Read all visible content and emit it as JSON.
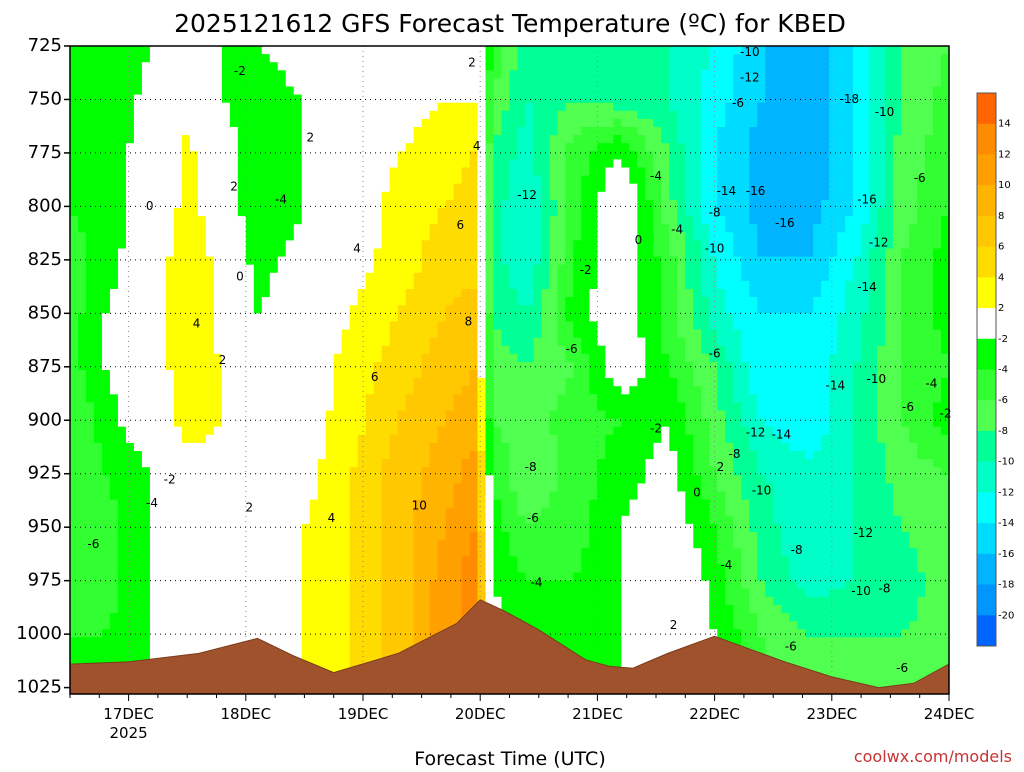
{
  "chart_data": {
    "type": "heatmap",
    "title": "2025121612 GFS Forecast Temperature (ºC) for KBED",
    "xlabel": "Forecast Time (UTC)",
    "ylabel": "",
    "credit": "coolwx.com/models",
    "x_ticks": [
      {
        "day": "17DEC",
        "year": "2025",
        "t": 1
      },
      {
        "day": "18DEC",
        "year": "",
        "t": 2
      },
      {
        "day": "19DEC",
        "year": "",
        "t": 3
      },
      {
        "day": "20DEC",
        "year": "",
        "t": 4
      },
      {
        "day": "21DEC",
        "year": "",
        "t": 5
      },
      {
        "day": "22DEC",
        "year": "",
        "t": 6
      },
      {
        "day": "23DEC",
        "year": "",
        "t": 7
      },
      {
        "day": "24DEC",
        "year": "",
        "t": 8
      }
    ],
    "xlim": [
      0.5,
      8.0
    ],
    "y_ticks": [
      725,
      750,
      775,
      800,
      825,
      850,
      875,
      900,
      925,
      950,
      975,
      1000,
      1025
    ],
    "ylim": [
      725,
      1028
    ],
    "y_inverted": true,
    "colorbar": {
      "labels": [
        "14",
        "12",
        "10",
        "8",
        "6",
        "4",
        "2",
        "-2",
        "-4",
        "-6",
        "-8",
        "-10",
        "-12",
        "-14",
        "-16",
        "-18",
        "-20"
      ],
      "colors": [
        "#ff6400",
        "#ff8c00",
        "#ffa000",
        "#ffb400",
        "#ffc800",
        "#ffdc00",
        "#ffff00",
        "#ffffff",
        "#00ff00",
        "#32ff32",
        "#50ff50",
        "#00ff96",
        "#00ffc8",
        "#00ffff",
        "#00dcff",
        "#00b4ff",
        "#0096ff",
        "#0064ff"
      ]
    },
    "field": {
      "time": [
        0.5,
        0.8,
        1.2,
        1.5,
        1.8,
        2.1,
        2.5,
        2.9,
        3.3,
        3.7,
        3.95,
        4.1,
        4.4,
        4.8,
        5.2,
        5.6,
        6.0,
        6.4,
        6.8,
        7.2,
        7.6,
        8.0
      ],
      "pressure": [
        725,
        750,
        775,
        800,
        825,
        850,
        875,
        900,
        925,
        950,
        975,
        1000,
        1025
      ],
      "temperature_c": [
        [
          -4,
          -4,
          -2,
          -1,
          -2,
          -2,
          -1,
          -1,
          0,
          1,
          2,
          -4,
          -10,
          -8,
          -9,
          -10,
          -12,
          -16,
          -18,
          -14,
          -8,
          -6
        ],
        [
          -4,
          -4,
          -1,
          0,
          -2,
          -3,
          -2,
          0,
          1,
          2,
          2,
          -6,
          -10,
          -8,
          -9,
          -10,
          -13,
          -16,
          -18,
          -14,
          -8,
          -5
        ],
        [
          -4,
          -3,
          -1,
          3,
          -1,
          -3,
          -2,
          0,
          2,
          3,
          4,
          -8,
          -11,
          -5,
          -2,
          -8,
          -14,
          -17,
          -18,
          -14,
          -7,
          -5
        ],
        [
          -4,
          -3,
          -1,
          3,
          0,
          -4,
          -2,
          0,
          3,
          4,
          5,
          -9,
          -12,
          -5,
          1,
          -7,
          -14,
          -17,
          -17,
          -14,
          -7,
          -4
        ],
        [
          -5,
          -3,
          0,
          4,
          1,
          -3,
          -1,
          1,
          3,
          5,
          5,
          -9,
          -12,
          -4,
          0,
          -5,
          -12,
          -16,
          -16,
          -12,
          -6,
          -3
        ],
        [
          -5,
          -2,
          0,
          4,
          1,
          -2,
          0,
          2,
          4,
          6,
          7,
          -8,
          -10,
          -3,
          0,
          -5,
          -11,
          -14,
          -14,
          -11,
          -6,
          -3
        ],
        [
          -5,
          -2,
          0,
          4,
          2,
          -1,
          0,
          3,
          5,
          7,
          8,
          -7,
          -8,
          -6,
          0,
          -4,
          -8,
          -14,
          -14,
          -10,
          -6,
          -4
        ],
        [
          -6,
          -3,
          0,
          3,
          2,
          0,
          1,
          3,
          6,
          8,
          9,
          -6,
          -7,
          -5,
          -4,
          -2,
          -7,
          -12,
          -14,
          -10,
          -6,
          -3
        ],
        [
          -6,
          -4,
          -2,
          1,
          1,
          0,
          1,
          4,
          7,
          9,
          11,
          -4,
          -8,
          -5,
          -3,
          -1,
          -6,
          -10,
          -11,
          -10,
          -7,
          -6
        ],
        [
          -6,
          -5,
          -2,
          1,
          2,
          0,
          2,
          4,
          7,
          10,
          12,
          -3,
          -6,
          -5,
          -2,
          0,
          -4,
          -9,
          -12,
          -10,
          -8,
          -6
        ],
        [
          -5,
          -5,
          -2,
          0,
          2,
          1,
          2,
          4,
          7,
          11,
          13,
          -2,
          -4,
          -4,
          -2,
          2,
          -3,
          -8,
          -11,
          -10,
          -9,
          -7
        ],
        [
          -4,
          -4,
          -2,
          0,
          2,
          1,
          2,
          4,
          7,
          11,
          13,
          -1,
          -3,
          -4,
          -2,
          2,
          -2,
          -6,
          -8,
          -8,
          -8,
          -7
        ],
        [
          -4,
          -4,
          -2,
          0,
          2,
          1,
          2,
          4,
          7,
          11,
          13,
          -1,
          -3,
          -4,
          -2,
          2,
          -2,
          -6,
          -8,
          -8,
          -8,
          -7
        ]
      ]
    },
    "terrain_pressure": [
      [
        0.5,
        1014
      ],
      [
        1.0,
        1013
      ],
      [
        1.6,
        1009
      ],
      [
        2.1,
        1002
      ],
      [
        2.4,
        1010
      ],
      [
        2.75,
        1018
      ],
      [
        3.3,
        1009
      ],
      [
        3.8,
        995
      ],
      [
        4.0,
        984
      ],
      [
        4.2,
        989
      ],
      [
        4.5,
        998
      ],
      [
        4.9,
        1012
      ],
      [
        5.1,
        1015
      ],
      [
        5.3,
        1016
      ],
      [
        5.6,
        1009
      ],
      [
        6.0,
        1001
      ],
      [
        6.2,
        1005
      ],
      [
        6.6,
        1013
      ],
      [
        7.0,
        1020
      ],
      [
        7.4,
        1025
      ],
      [
        7.7,
        1023
      ],
      [
        8.0,
        1014
      ]
    ],
    "contour_labels": [
      {
        "text": "-2",
        "t": 1.95,
        "p": 737
      },
      {
        "text": "2",
        "t": 3.93,
        "p": 733
      },
      {
        "text": "-10",
        "t": 6.3,
        "p": 728
      },
      {
        "text": "-12",
        "t": 6.3,
        "p": 740
      },
      {
        "text": "-18",
        "t": 7.15,
        "p": 750
      },
      {
        "text": "-10",
        "t": 7.45,
        "p": 756
      },
      {
        "text": "-6",
        "t": 6.2,
        "p": 752
      },
      {
        "text": "2",
        "t": 2.55,
        "p": 768
      },
      {
        "text": "4",
        "t": 3.97,
        "p": 772
      },
      {
        "text": "-4",
        "t": 5.5,
        "p": 786
      },
      {
        "text": "-6",
        "t": 7.75,
        "p": 787
      },
      {
        "text": "0",
        "t": 1.18,
        "p": 800
      },
      {
        "text": "2",
        "t": 1.9,
        "p": 791
      },
      {
        "text": "-4",
        "t": 2.3,
        "p": 797
      },
      {
        "text": "-12",
        "t": 4.4,
        "p": 795
      },
      {
        "text": "-14",
        "t": 6.1,
        "p": 793
      },
      {
        "text": "-16",
        "t": 6.35,
        "p": 793
      },
      {
        "text": "-8",
        "t": 6.0,
        "p": 803
      },
      {
        "text": "-16",
        "t": 6.6,
        "p": 808
      },
      {
        "text": "-16",
        "t": 7.3,
        "p": 797
      },
      {
        "text": "4",
        "t": 2.95,
        "p": 820
      },
      {
        "text": "6",
        "t": 3.83,
        "p": 809
      },
      {
        "text": "0",
        "t": 5.35,
        "p": 816
      },
      {
        "text": "-4",
        "t": 5.68,
        "p": 811
      },
      {
        "text": "-10",
        "t": 6.0,
        "p": 820
      },
      {
        "text": "-12",
        "t": 7.4,
        "p": 817
      },
      {
        "text": "0",
        "t": 1.95,
        "p": 833
      },
      {
        "text": "-2",
        "t": 4.9,
        "p": 830
      },
      {
        "text": "-14",
        "t": 7.3,
        "p": 838
      },
      {
        "text": "4",
        "t": 1.58,
        "p": 855
      },
      {
        "text": "8",
        "t": 3.9,
        "p": 854
      },
      {
        "text": "2",
        "t": 1.8,
        "p": 872
      },
      {
        "text": "6",
        "t": 3.1,
        "p": 880
      },
      {
        "text": "-6",
        "t": 4.78,
        "p": 867
      },
      {
        "text": "-6",
        "t": 6.0,
        "p": 869
      },
      {
        "text": "-14",
        "t": 7.03,
        "p": 884
      },
      {
        "text": "-10",
        "t": 7.38,
        "p": 881
      },
      {
        "text": "-4",
        "t": 7.85,
        "p": 883
      },
      {
        "text": "-6",
        "t": 7.65,
        "p": 894
      },
      {
        "text": "-2",
        "t": 7.97,
        "p": 897
      },
      {
        "text": "-2",
        "t": 5.5,
        "p": 904
      },
      {
        "text": "-12",
        "t": 6.35,
        "p": 906
      },
      {
        "text": "-14",
        "t": 6.57,
        "p": 907
      },
      {
        "text": "-8",
        "t": 6.17,
        "p": 916
      },
      {
        "text": "-2",
        "t": 1.35,
        "p": 928
      },
      {
        "text": "-8",
        "t": 4.43,
        "p": 922
      },
      {
        "text": "2",
        "t": 6.05,
        "p": 922
      },
      {
        "text": "-4",
        "t": 1.2,
        "p": 939
      },
      {
        "text": "0",
        "t": 5.85,
        "p": 934
      },
      {
        "text": "-10",
        "t": 6.4,
        "p": 933
      },
      {
        "text": "2",
        "t": 2.03,
        "p": 941
      },
      {
        "text": "10",
        "t": 3.48,
        "p": 940
      },
      {
        "text": "4",
        "t": 2.73,
        "p": 946
      },
      {
        "text": "-6",
        "t": 4.45,
        "p": 946
      },
      {
        "text": "-12",
        "t": 7.27,
        "p": 953
      },
      {
        "text": "-6",
        "t": 0.7,
        "p": 958
      },
      {
        "text": "-8",
        "t": 6.7,
        "p": 961
      },
      {
        "text": "-4",
        "t": 4.48,
        "p": 976
      },
      {
        "text": "-4",
        "t": 6.1,
        "p": 968
      },
      {
        "text": "-10",
        "t": 7.25,
        "p": 980
      },
      {
        "text": "-8",
        "t": 7.45,
        "p": 979
      },
      {
        "text": "2",
        "t": 5.65,
        "p": 996
      },
      {
        "text": "-6",
        "t": 6.65,
        "p": 1006
      },
      {
        "text": "-6",
        "t": 7.6,
        "p": 1016
      }
    ]
  }
}
